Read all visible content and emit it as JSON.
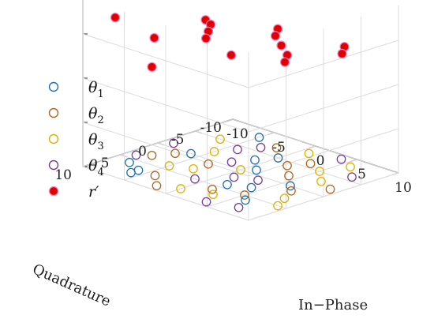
{
  "chart_data": {
    "type": "scatter",
    "projection": "3d",
    "xlabel": "In−Phase",
    "ylabel": "Quadrature",
    "zlabel": "",
    "xlim": [
      -10,
      10
    ],
    "ylim": [
      -10,
      10
    ],
    "x_ticks": [
      "-10",
      "-5",
      "0",
      "5",
      "10"
    ],
    "y_ticks": [
      "-10",
      "-5",
      "0",
      "5",
      "10"
    ],
    "grid": true,
    "legend_position": "left",
    "legend": [
      {
        "base": "θ",
        "sub": "1",
        "color": "#1f6fb5",
        "marker": "open-circle"
      },
      {
        "base": "θ",
        "sub": "2",
        "color": "#b5651d",
        "marker": "open-circle"
      },
      {
        "base": "θ",
        "sub": "3",
        "color": "#e0b000",
        "marker": "open-circle"
      },
      {
        "base": "θ",
        "sub": "4",
        "color": "#7a3b9a",
        "marker": "open-circle"
      },
      {
        "base": "r′",
        "sub": "",
        "color": "#e00000",
        "marker": "filled-circle"
      }
    ],
    "ground_colors": [
      "#1f6fb5",
      "#b5651d",
      "#e0b000",
      "#7a3b9a"
    ],
    "ground_points": [
      [
        -6,
        8,
        0
      ],
      [
        -2,
        9,
        1
      ],
      [
        3,
        7,
        2
      ],
      [
        7,
        8,
        3
      ],
      [
        -8,
        3,
        1
      ],
      [
        -5,
        4,
        2
      ],
      [
        -1,
        5,
        3
      ],
      [
        2,
        4,
        0
      ],
      [
        5,
        5,
        1
      ],
      [
        8,
        3,
        2
      ],
      [
        -9,
        -1,
        3
      ],
      [
        -6,
        0,
        0
      ],
      [
        -3,
        1,
        1
      ],
      [
        0,
        0,
        2
      ],
      [
        3,
        1,
        3
      ],
      [
        6,
        0,
        0
      ],
      [
        9,
        -2,
        1
      ],
      [
        -7,
        -5,
        2
      ],
      [
        -4,
        -4,
        3
      ],
      [
        -1,
        -3,
        0
      ],
      [
        2,
        -4,
        1
      ],
      [
        5,
        -5,
        2
      ],
      [
        8,
        -6,
        3
      ],
      [
        -5,
        -8,
        0
      ],
      [
        -2,
        -7,
        1
      ],
      [
        1,
        -8,
        2
      ],
      [
        4,
        -9,
        3
      ],
      [
        -8,
        6,
        0
      ],
      [
        -4,
        7,
        1
      ],
      [
        0,
        8,
        2
      ],
      [
        4,
        9,
        3
      ],
      [
        6,
        6,
        0
      ],
      [
        -7,
        1,
        1
      ],
      [
        -3,
        3,
        2
      ],
      [
        1,
        2,
        3
      ],
      [
        4,
        3,
        0
      ],
      [
        7,
        1,
        1
      ],
      [
        -5,
        -2,
        2
      ],
      [
        -2,
        -1,
        3
      ],
      [
        1,
        -1,
        0
      ],
      [
        4,
        -2,
        1
      ],
      [
        7,
        -3,
        2
      ],
      [
        -3,
        -6,
        3
      ],
      [
        0,
        -5,
        0
      ],
      [
        3,
        -6,
        1
      ],
      [
        6,
        -8,
        2
      ],
      [
        -9,
        4,
        3
      ],
      [
        -6,
        7,
        0
      ],
      [
        2,
        6,
        1
      ],
      [
        9,
        5,
        2
      ]
    ],
    "upper_points": [
      [
        -7,
        9,
        7
      ],
      [
        3,
        8,
        8
      ],
      [
        9,
        5,
        8
      ],
      [
        -5,
        6,
        6
      ],
      [
        0,
        4,
        7
      ],
      [
        6,
        2,
        7
      ],
      [
        -3,
        1,
        6
      ],
      [
        4,
        -1,
        6
      ],
      [
        -6,
        -2,
        5
      ],
      [
        2,
        -4,
        5
      ],
      [
        8,
        -5,
        6
      ],
      [
        -1,
        -7,
        4
      ],
      [
        5,
        -8,
        5
      ],
      [
        -8,
        3,
        4
      ],
      [
        7,
        9,
        7
      ]
    ]
  }
}
